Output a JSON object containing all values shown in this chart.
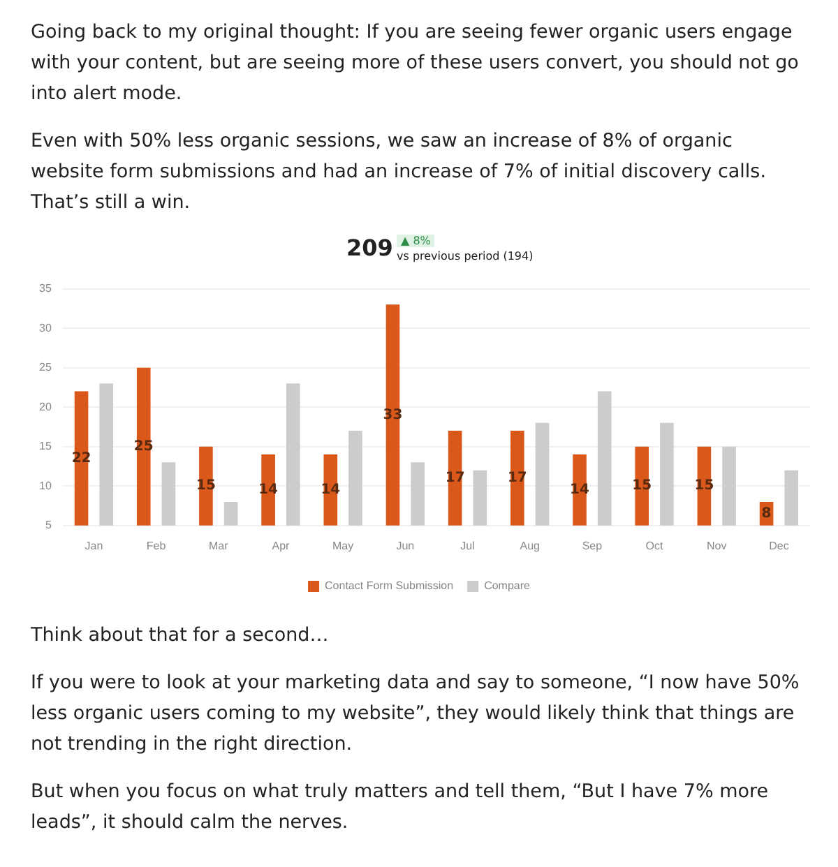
{
  "chart_data": {
    "type": "bar",
    "title": "209",
    "subtitle": "vs previous period (194)",
    "categories": [
      "Jan",
      "Feb",
      "Mar",
      "Apr",
      "May",
      "Jun",
      "Jul",
      "Aug",
      "Sep",
      "Oct",
      "Nov",
      "Dec"
    ],
    "series": [
      {
        "name": "Contact Form Submission",
        "color": "#d9581a",
        "values": [
          22,
          25,
          15,
          14,
          14,
          33,
          17,
          17,
          14,
          15,
          15,
          8
        ],
        "value_labels": [
          "22",
          "25",
          "15",
          "14",
          "14",
          "33",
          "17",
          "17",
          "14",
          "15",
          "15",
          "8"
        ]
      },
      {
        "name": "Compare",
        "color": "#cccccc",
        "values": [
          23,
          13,
          8,
          23,
          17,
          13,
          12,
          18,
          22,
          18,
          15,
          12
        ]
      }
    ],
    "ylim": [
      5,
      35
    ],
    "yticks": [
      5,
      10,
      15,
      20,
      25,
      30,
      35
    ],
    "grid": "y",
    "legend": "bottom",
    "annotations": [
      "Going back to my original thought: If you are seeing fewer organic users engage with your content, but are seeing more of these users convert, you should not go into alert mode.",
      "Even with 50% less organic sessions, we saw an increase of 8% of organic website form submissions and had an increase of 7% of initial discovery calls. That’s still a win.",
      "▲ 8%",
      "Think about that for a second…",
      "If you were to look at your marketing data and say to someone, “I now have 50% less organic users coming to my website”, they would likely think that things are not trending in the right direction.",
      "But when you focus on what truly matters and tell them, “But I have 7% more leads”, it should calm the nerves."
    ]
  }
}
